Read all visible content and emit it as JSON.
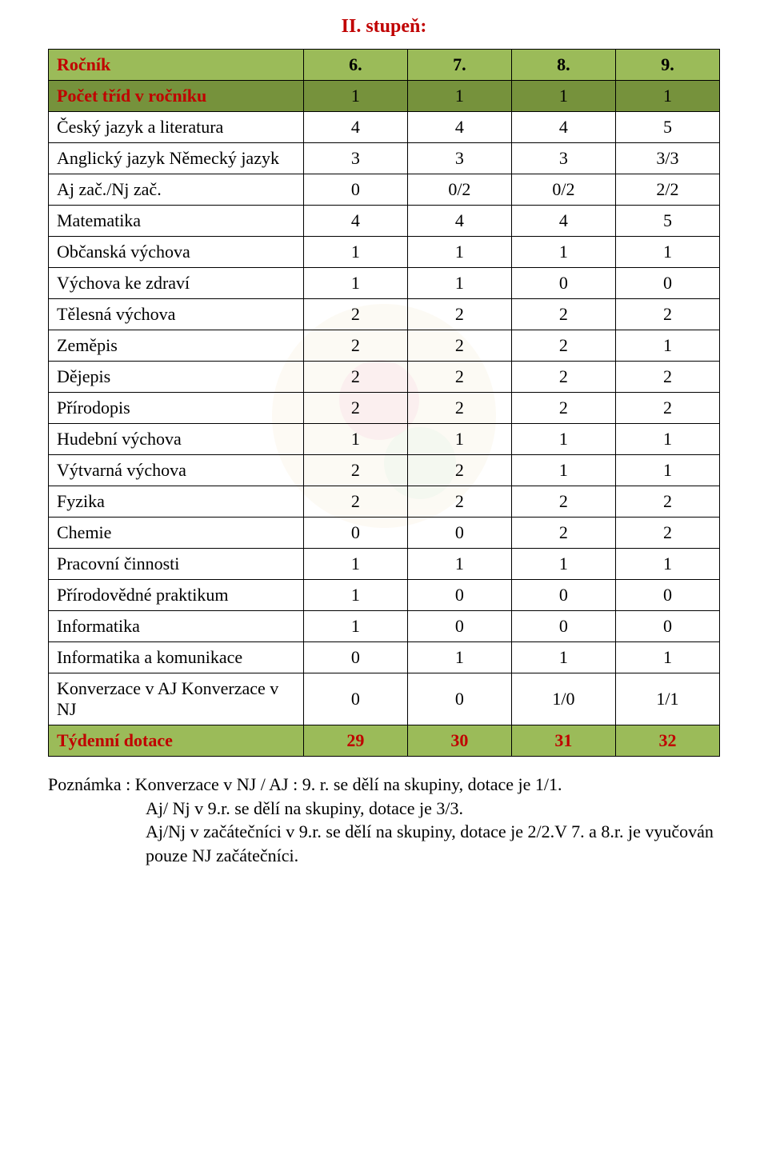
{
  "document": {
    "heading": "II. stupeň:",
    "colors": {
      "accent_red": "#c00000",
      "band_light_green": "#9bbb59",
      "band_dark_green": "#76923c",
      "border": "#000000",
      "text": "#000000",
      "background": "#ffffff"
    }
  },
  "table": {
    "header_row": {
      "label": "Ročník",
      "cells": [
        "6.",
        "7.",
        "8.",
        "9."
      ]
    },
    "count_row": {
      "label": "Počet tříd\nv ročníku",
      "cells": [
        "1",
        "1",
        "1",
        "1"
      ]
    },
    "rows": [
      {
        "label": "Český jazyk a\nliteratura",
        "cells": [
          "4",
          "4",
          "4",
          "5"
        ]
      },
      {
        "label": "Anglický jazyk\nNěmecký jazyk",
        "cells": [
          "3",
          "3",
          "3",
          "3/3"
        ]
      },
      {
        "label": "Aj zač./Nj zač.",
        "cells": [
          "0",
          "0/2",
          "0/2",
          "2/2"
        ]
      },
      {
        "label": "Matematika",
        "cells": [
          "4",
          "4",
          "4",
          "5"
        ]
      },
      {
        "label": "Občanská\nvýchova",
        "cells": [
          "1",
          "1",
          "1",
          "1"
        ]
      },
      {
        "label": "Výchova  ke\nzdraví",
        "cells": [
          "1",
          "1",
          "0",
          "0"
        ]
      },
      {
        "label": "Tělesná výchova",
        "cells": [
          "2",
          "2",
          "2",
          "2"
        ]
      },
      {
        "label": "Zeměpis",
        "cells": [
          "2",
          "2",
          "2",
          "1"
        ]
      },
      {
        "label": "Dějepis",
        "cells": [
          "2",
          "2",
          "2",
          "2"
        ]
      },
      {
        "label": "Přírodopis",
        "cells": [
          "2",
          "2",
          "2",
          "2"
        ]
      },
      {
        "label": "Hudební\nvýchova",
        "cells": [
          "1",
          "1",
          "1",
          "1"
        ]
      },
      {
        "label": "Výtvarná\nvýchova",
        "cells": [
          "2",
          "2",
          "1",
          "1"
        ]
      },
      {
        "label": "Fyzika",
        "cells": [
          "2",
          "2",
          "2",
          "2"
        ]
      },
      {
        "label": "Chemie",
        "cells": [
          "0",
          "0",
          "2",
          "2"
        ]
      },
      {
        "label": "Pracovní činnosti",
        "cells": [
          "1",
          "1",
          "1",
          "1"
        ]
      },
      {
        "label": "Přírodovědné\npraktikum",
        "cells": [
          "1",
          "0",
          "0",
          "0"
        ]
      },
      {
        "label": "Informatika",
        "cells": [
          "1",
          "0",
          "0",
          "0"
        ]
      },
      {
        "label": "Informatika a\nkomunikace",
        "cells": [
          "0",
          "1",
          "1",
          "1"
        ]
      },
      {
        "label": "Konverzace v AJ\nKonverzace v NJ",
        "cells": [
          "0",
          "0",
          "1/0",
          "1/1"
        ]
      }
    ],
    "footer_row": {
      "label": "Týdenní dotace",
      "cells": [
        "29",
        "30",
        "31",
        "32"
      ]
    }
  },
  "footnote": {
    "line1": "Poznámka : Konverzace v NJ / AJ :  9. r. se dělí na skupiny, dotace je 1/1.",
    "line2": "Aj/ Nj v 9.r. se dělí na skupiny, dotace je 3/3.",
    "line3": "Aj/Nj v začátečníci v 9.r. se dělí na skupiny, dotace je 2/2.V 7. a 8.r. je vyučován",
    "line4": "pouze NJ začátečníci."
  }
}
